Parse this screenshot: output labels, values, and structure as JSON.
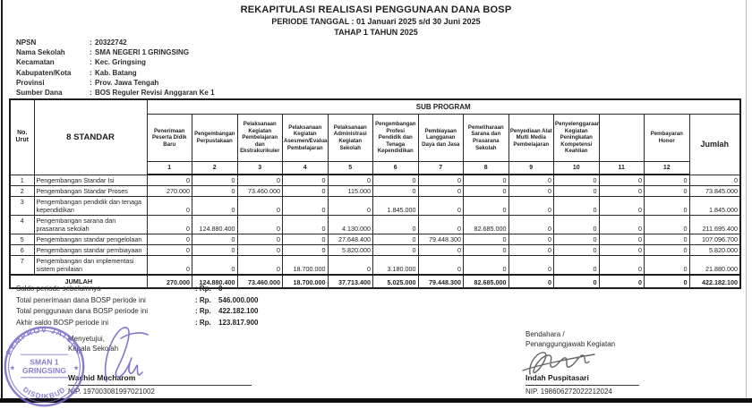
{
  "header": {
    "title": "REKAPITULASI REALISASI PENGGUNAAN DANA BOSP",
    "subtitle1": "PERIODE TANGGAL : 01 Januari 2025 s/d 30 Juni 2025",
    "subtitle2": "TAHAP 1 TAHUN 2025"
  },
  "school_info": [
    {
      "label": "NPSN",
      "value": "20322742"
    },
    {
      "label": "Nama Sekolah",
      "value": "SMA NEGERI 1 GRINGSING"
    },
    {
      "label": "Kecamatan",
      "value": "Kec. Gringsing"
    },
    {
      "label": "Kabupaten/Kota",
      "value": "Kab. Batang"
    },
    {
      "label": "Provinsi",
      "value": "Prov. Jawa Tengah"
    },
    {
      "label": "Sumber Dana",
      "value": "BOS Reguler Revisi Anggaran Ke 1"
    }
  ],
  "table": {
    "col_no": "No. Urut",
    "col_standar": "8 STANDAR",
    "col_subprogram": "SUB PROGRAM",
    "col_jumlah": "Jumlah",
    "sub_columns": [
      {
        "num": "1",
        "label": "Penerimaan Peserta Didik Baru"
      },
      {
        "num": "2",
        "label": "Pengembangan Perpustakaan"
      },
      {
        "num": "3",
        "label": "Pelaksanaan Kegiatan Pembelajaran dan Ekstrakurikuler"
      },
      {
        "num": "4",
        "label": "Pelaksanaan Kegiatan Asesmen/Evaluasi Pembelajaran"
      },
      {
        "num": "5",
        "label": "Pelaksanaan Administrasi Kegiatan Sekolah"
      },
      {
        "num": "6",
        "label": "Pengembangan Profesi Pendidik dan Tenaga Kependidikan"
      },
      {
        "num": "7",
        "label": "Pembiayaan Langganan Daya dan Jasa"
      },
      {
        "num": "8",
        "label": "Pemeliharaan Sarana dan Prasarana Sekolah"
      },
      {
        "num": "9",
        "label": "Penyediaan Alat Multi Media Pembelajaran"
      },
      {
        "num": "10",
        "label": "Penyelenggaraan Kegiatan Peningkatan Kompetensi Keahlian"
      },
      {
        "num": "11",
        "label": ""
      },
      {
        "num": "12",
        "label": "Pembayaran Honor"
      }
    ],
    "rows": [
      {
        "no": "1",
        "label": "Pengembangan Standar Isi",
        "values": [
          "0",
          "0",
          "0",
          "0",
          "0",
          "0",
          "0",
          "0",
          "0",
          "0",
          "0",
          "0"
        ],
        "jumlah": "0"
      },
      {
        "no": "2",
        "label": "Pengembangan Standar Proses",
        "values": [
          "270.000",
          "0",
          "73.460.000",
          "0",
          "115.000",
          "0",
          "0",
          "0",
          "0",
          "0",
          "0",
          "0"
        ],
        "jumlah": "73.845.000"
      },
      {
        "no": "3",
        "label": "Pengembangan pendidik dan tenaga kependidikan",
        "values": [
          "0",
          "0",
          "0",
          "0",
          "0",
          "1.845.000",
          "0",
          "0",
          "0",
          "0",
          "0",
          "0"
        ],
        "jumlah": "1.845.000"
      },
      {
        "no": "4",
        "label": "Pengembangan sarana dan prasarana sekolah",
        "values": [
          "0",
          "124.880.400",
          "0",
          "0",
          "4.130.000",
          "0",
          "0",
          "82.685.000",
          "0",
          "0",
          "0",
          "0"
        ],
        "jumlah": "211.695.400"
      },
      {
        "no": "5",
        "label": "Pengembangan standar pengelolaan",
        "values": [
          "0",
          "0",
          "0",
          "0",
          "27.648.400",
          "0",
          "79.448.300",
          "0",
          "0",
          "0",
          "0",
          "0"
        ],
        "jumlah": "107.096.700"
      },
      {
        "no": "6",
        "label": "Pengembangan standar pembiayaan",
        "values": [
          "0",
          "0",
          "0",
          "0",
          "5.820.000",
          "0",
          "0",
          "0",
          "0",
          "0",
          "0",
          "0"
        ],
        "jumlah": "5.820.000"
      },
      {
        "no": "7",
        "label": "Pengembangan dan implementasi sistem penilaian",
        "values": [
          "0",
          "0",
          "0",
          "18.700.000",
          "0",
          "3.180.000",
          "0",
          "0",
          "0",
          "0",
          "0",
          "0"
        ],
        "jumlah": "21.880.000"
      }
    ],
    "total": {
      "label": "JUMLAH",
      "values": [
        "270.000",
        "124.880.400",
        "73.460.000",
        "18.700.000",
        "37.713.400",
        "5.025.000",
        "79.448.300",
        "82.685.000",
        "0",
        "0",
        "0",
        "0"
      ],
      "jumlah": "422.182.100"
    }
  },
  "summary": [
    {
      "label": "Saldo periode sebelumnya",
      "currency": "Rp.",
      "value": "0"
    },
    {
      "label": "Total penerimaan dana BOSP periode ini",
      "currency": "Rp.",
      "value": "546.000.000"
    },
    {
      "label": "Total penggunaan dana BOSP periode ini",
      "currency": "Rp.",
      "value": "422.182.100"
    },
    {
      "label": "Akhir saldo BOSP periode ini",
      "currency": "Rp.",
      "value": "123.817.900"
    }
  ],
  "signatures": {
    "left": {
      "role1": "Menyetujui,",
      "role2": "Kepala Sekolah",
      "name": "Wachid Mucharom",
      "nip": "NIP. 197003081997021002"
    },
    "right": {
      "role1": "Bendahara /",
      "role2": "Penanggungjawab Kegiatan",
      "name": "Indah Puspitasari",
      "nip": "NIP. 198606272022212024"
    }
  },
  "stamp": {
    "arc_top": "PEMPROV JATENG",
    "center1": "SMAN 1",
    "center2": "GRINGSING",
    "arc_bottom": "DISDIKBUD",
    "color": "#7668c8"
  },
  "colors": {
    "ink": "#1f1f1f",
    "stamp": "#7668c8",
    "sig_right": "#4a4a4a"
  }
}
